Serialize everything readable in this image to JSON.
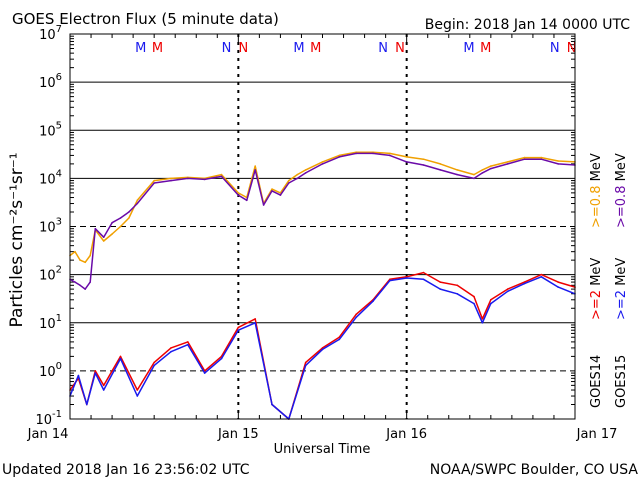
{
  "title": "GOES Electron Flux (5 minute data)",
  "begin": "Begin: 2018 Jan 14 0000 UTC",
  "updated": "Updated 2018 Jan 16 23:56:02 UTC",
  "credit": "NOAA/SWPC Boulder, CO USA",
  "colors": {
    "goes14_low": "#ee0000",
    "goes15_low": "#1a1aee",
    "goes14_high": "#f0a000",
    "goes15_high": "#6a0aa8",
    "grid": "#000000"
  },
  "markers": [
    {
      "label": "M",
      "color": "#1a1aee",
      "day": 0.42
    },
    {
      "label": "M",
      "color": "#ee0000",
      "day": 0.52
    },
    {
      "label": "N",
      "color": "#1a1aee",
      "day": 0.93
    },
    {
      "label": "N",
      "color": "#ee0000",
      "day": 1.03
    },
    {
      "label": "M",
      "color": "#1a1aee",
      "day": 1.36
    },
    {
      "label": "M",
      "color": "#ee0000",
      "day": 1.46
    },
    {
      "label": "N",
      "color": "#1a1aee",
      "day": 1.86
    },
    {
      "label": "N",
      "color": "#ee0000",
      "day": 1.96
    },
    {
      "label": "M",
      "color": "#1a1aee",
      "day": 2.37
    },
    {
      "label": "M",
      "color": "#ee0000",
      "day": 2.47
    },
    {
      "label": "N",
      "color": "#1a1aee",
      "day": 2.88
    },
    {
      "label": "N",
      "color": "#ee0000",
      "day": 2.98
    }
  ],
  "chart_data": {
    "type": "line",
    "x_label": "Universal Time",
    "y_label": "Particles cm⁻²s⁻¹sr⁻¹",
    "y_scale": "log",
    "ylim": [
      0.1,
      10000000
    ],
    "xlim": [
      "2018-01-14",
      "2018-01-17"
    ],
    "x_ticks": [
      "Jan 14",
      "Jan 15",
      "Jan 16",
      "Jan 17"
    ],
    "y_ticks": [
      {
        "base": "10",
        "exp": "-1"
      },
      {
        "base": "10",
        "exp": "0"
      },
      {
        "base": "10",
        "exp": "1"
      },
      {
        "base": "10",
        "exp": "2"
      },
      {
        "base": "10",
        "exp": "3"
      },
      {
        "base": "10",
        "exp": "4"
      },
      {
        "base": "10",
        "exp": "5"
      },
      {
        "base": "10",
        "exp": "6"
      },
      {
        "base": "10",
        "exp": "7"
      }
    ],
    "dashed_gridlines": [
      1000,
      1
    ],
    "legend": [
      {
        "satellite": "GOES14",
        "entries": [
          {
            "text": ">=2",
            "unit": "MeV",
            "color": "#ee0000"
          },
          {
            "text": ">=0.8",
            "unit": "MeV",
            "color": "#f0a000"
          }
        ]
      },
      {
        "satellite": "GOES15",
        "entries": [
          {
            "text": ">=2",
            "unit": "MeV",
            "color": "#1a1aee"
          },
          {
            "text": ">=0.8",
            "unit": "MeV",
            "color": "#6a0aa8"
          }
        ]
      }
    ],
    "series": [
      {
        "name": "GOES14 >=0.8 MeV",
        "color": "#f0a000",
        "x_days": [
          0,
          0.03,
          0.06,
          0.09,
          0.12,
          0.15,
          0.2,
          0.25,
          0.3,
          0.35,
          0.4,
          0.5,
          0.6,
          0.7,
          0.8,
          0.9,
          1.0,
          1.05,
          1.1,
          1.15,
          1.2,
          1.25,
          1.3,
          1.35,
          1.4,
          1.5,
          1.6,
          1.7,
          1.8,
          1.9,
          2.0,
          2.1,
          2.2,
          2.3,
          2.4,
          2.45,
          2.5,
          2.6,
          2.7,
          2.8,
          2.9,
          3.0
        ],
        "values": [
          250,
          300,
          200,
          180,
          250,
          850,
          500,
          700,
          1000,
          1500,
          3500,
          9000,
          10000,
          10500,
          10000,
          12000,
          5000,
          4000,
          18000,
          3000,
          6000,
          5000,
          9000,
          12000,
          15000,
          22000,
          30000,
          35000,
          35000,
          33000,
          28000,
          25000,
          20000,
          15000,
          12000,
          15000,
          18000,
          22000,
          27000,
          27000,
          23000,
          22000
        ]
      },
      {
        "name": "GOES15 >=0.8 MeV",
        "color": "#6a0aa8",
        "x_days": [
          0,
          0.03,
          0.06,
          0.09,
          0.12,
          0.15,
          0.2,
          0.25,
          0.3,
          0.35,
          0.4,
          0.5,
          0.6,
          0.7,
          0.8,
          0.9,
          1.0,
          1.05,
          1.1,
          1.15,
          1.2,
          1.25,
          1.3,
          1.35,
          1.4,
          1.5,
          1.6,
          1.7,
          1.8,
          1.9,
          2.0,
          2.1,
          2.2,
          2.3,
          2.4,
          2.45,
          2.5,
          2.6,
          2.7,
          2.8,
          2.9,
          3.0
        ],
        "values": [
          80,
          70,
          60,
          50,
          70,
          900,
          600,
          1200,
          1500,
          2000,
          3000,
          8000,
          9000,
          10000,
          9500,
          11000,
          4500,
          3500,
          15000,
          2800,
          5500,
          4500,
          8000,
          10000,
          13000,
          20000,
          28000,
          33000,
          33000,
          30000,
          22000,
          19000,
          15000,
          12000,
          10000,
          13000,
          16000,
          20000,
          25000,
          25000,
          20000,
          19000
        ]
      },
      {
        "name": "GOES14 >=2 MeV",
        "color": "#ee0000",
        "x_days": [
          0,
          0.05,
          0.1,
          0.15,
          0.2,
          0.3,
          0.4,
          0.5,
          0.6,
          0.7,
          0.8,
          0.9,
          1.0,
          1.1,
          1.2,
          1.3,
          1.4,
          1.5,
          1.6,
          1.7,
          1.8,
          1.9,
          2.0,
          2.1,
          2.2,
          2.3,
          2.4,
          2.45,
          2.5,
          2.6,
          2.7,
          2.8,
          2.9,
          3.0
        ],
        "values": [
          0.4,
          0.7,
          0.2,
          1.0,
          0.5,
          2.0,
          0.4,
          1.5,
          3.0,
          4.0,
          1.0,
          2.0,
          8.0,
          12.0,
          0.2,
          0.1,
          1.5,
          3.0,
          5.0,
          15.0,
          30.0,
          80.0,
          90.0,
          110.0,
          70.0,
          60.0,
          35.0,
          12.0,
          30.0,
          50.0,
          70.0,
          100.0,
          70.0,
          55.0
        ]
      },
      {
        "name": "GOES15 >=2 MeV",
        "color": "#1a1aee",
        "x_days": [
          0,
          0.05,
          0.1,
          0.15,
          0.2,
          0.3,
          0.4,
          0.5,
          0.6,
          0.7,
          0.8,
          0.9,
          1.0,
          1.1,
          1.2,
          1.3,
          1.4,
          1.5,
          1.6,
          1.7,
          1.8,
          1.9,
          2.0,
          2.1,
          2.2,
          2.3,
          2.4,
          2.45,
          2.5,
          2.6,
          2.7,
          2.8,
          2.9,
          3.0
        ],
        "values": [
          0.3,
          0.8,
          0.2,
          0.9,
          0.4,
          1.8,
          0.3,
          1.3,
          2.5,
          3.5,
          0.9,
          1.8,
          7.0,
          10.0,
          0.2,
          0.1,
          1.3,
          2.8,
          4.5,
          13.0,
          28.0,
          75.0,
          85.0,
          80.0,
          50.0,
          40.0,
          25.0,
          10.0,
          25.0,
          45.0,
          65.0,
          90.0,
          55.0,
          40.0
        ]
      }
    ]
  }
}
